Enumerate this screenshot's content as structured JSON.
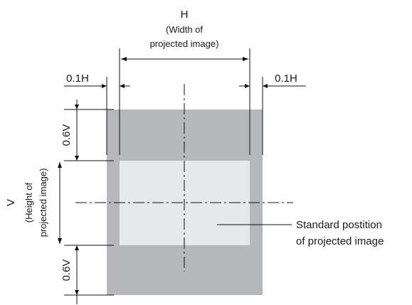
{
  "labels": {
    "h_symbol": "H",
    "h_desc_line1": "(Width of",
    "h_desc_line2": "projected image)",
    "margin_left": "0.1H",
    "margin_right": "0.1H",
    "v_symbol": "V",
    "v_desc_line1": "(Height of",
    "v_desc_line2": "projected image)",
    "offset_top": "0.6V",
    "offset_bottom": "0.6V",
    "callout_line1": "Standard postition",
    "callout_line2": "of projected image"
  },
  "colors": {
    "outer_area": "#b7b8bb",
    "projected_image": "#e7e8ea",
    "lines": "#111111"
  }
}
